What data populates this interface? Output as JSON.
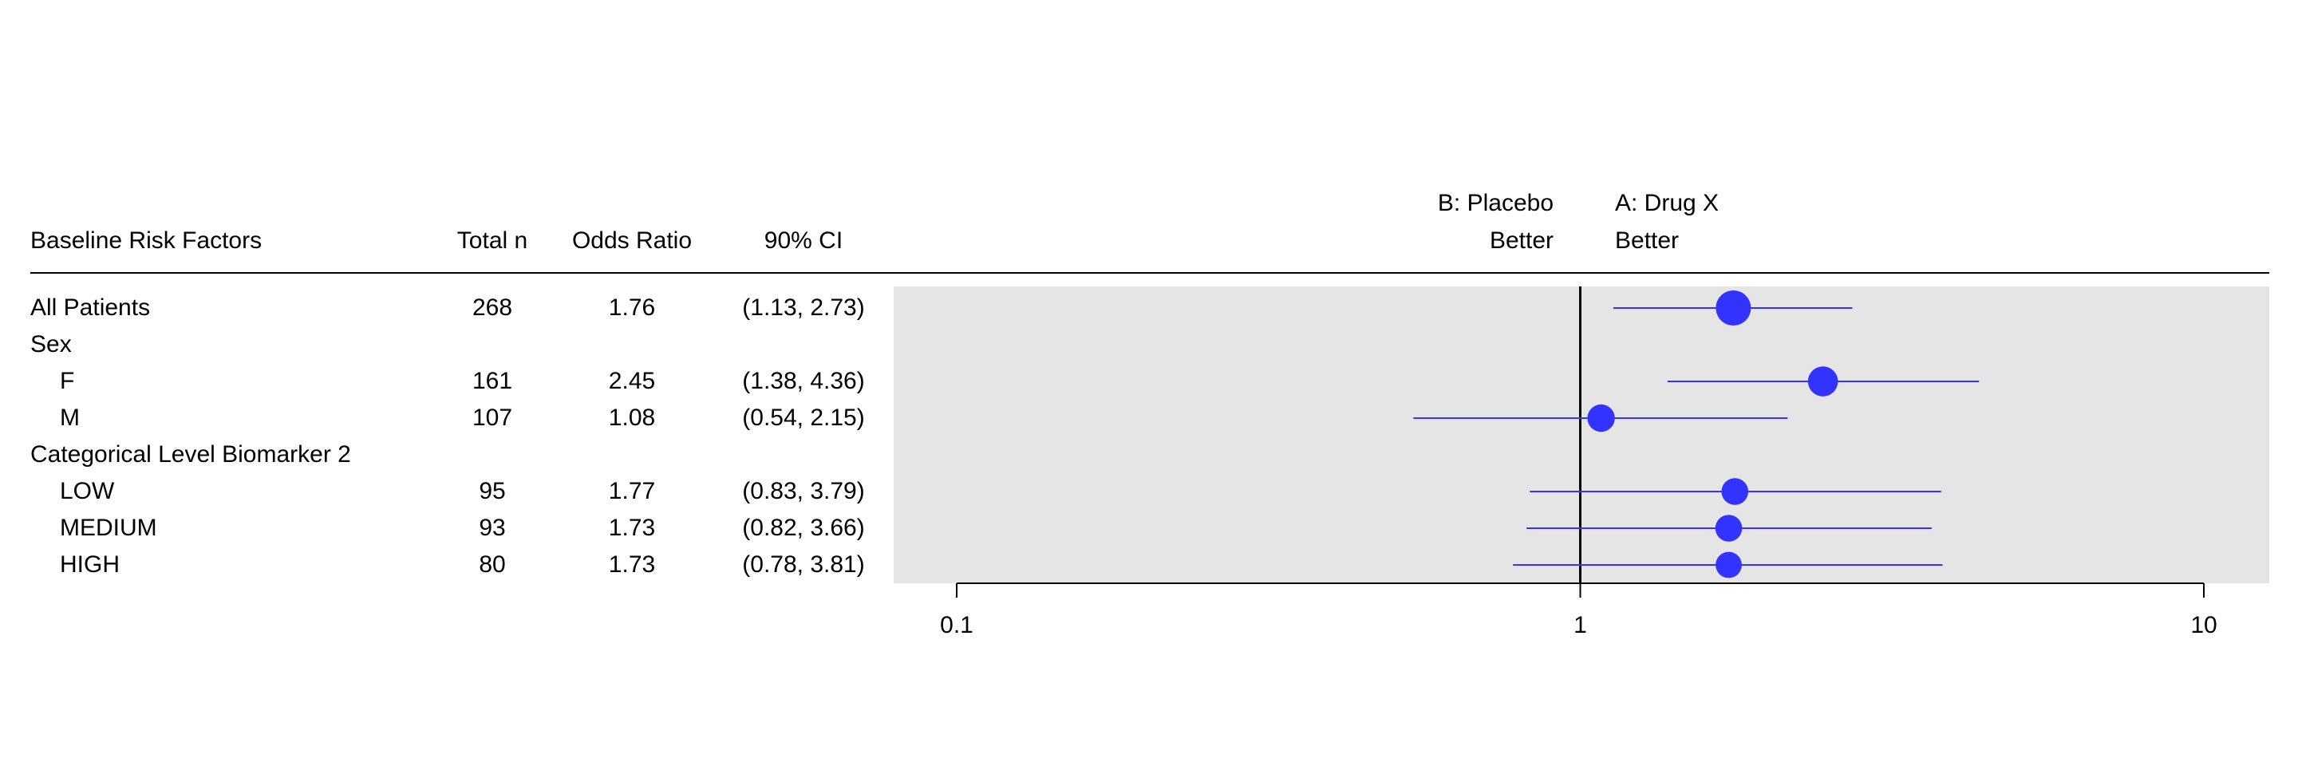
{
  "table": {
    "headers": {
      "factor": "Baseline Risk Factors",
      "n": "Total n",
      "or": "Odds Ratio",
      "ci": "90% CI"
    },
    "rows": [
      {
        "label": "All Patients",
        "indent": false,
        "n": "268",
        "or": "1.76",
        "ci": "(1.13, 2.73)"
      },
      {
        "label": "Sex",
        "indent": false,
        "n": "",
        "or": "",
        "ci": ""
      },
      {
        "label": "F",
        "indent": true,
        "n": "161",
        "or": "2.45",
        "ci": "(1.38, 4.36)"
      },
      {
        "label": "M",
        "indent": true,
        "n": "107",
        "or": "1.08",
        "ci": "(0.54, 2.15)"
      },
      {
        "label": "Categorical Level Biomarker 2",
        "indent": false,
        "n": "",
        "or": "",
        "ci": ""
      },
      {
        "label": "LOW",
        "indent": true,
        "n": "95",
        "or": "1.77",
        "ci": "(0.83, 3.79)"
      },
      {
        "label": "MEDIUM",
        "indent": true,
        "n": "93",
        "or": "1.73",
        "ci": "(0.82, 3.66)"
      },
      {
        "label": "HIGH",
        "indent": true,
        "n": "80",
        "or": "1.73",
        "ci": "(0.78, 3.81)"
      }
    ]
  },
  "annotations": {
    "left_line1": "B: Placebo",
    "left_line2": "Better",
    "right_line1": "A: Drug X",
    "right_line2": "Better"
  },
  "chart_data": {
    "type": "scatter",
    "subtype": "forest",
    "x_scale": "log",
    "xlim": [
      0.1,
      10
    ],
    "reference_line": 1,
    "x_ticks": [
      "0.1",
      "1",
      "10"
    ],
    "points": [
      {
        "row": 0,
        "or": 1.76,
        "lcl": 1.13,
        "ucl": 2.73,
        "n": 268
      },
      {
        "row": 2,
        "or": 2.45,
        "lcl": 1.38,
        "ucl": 4.36,
        "n": 161
      },
      {
        "row": 3,
        "or": 1.08,
        "lcl": 0.54,
        "ucl": 2.15,
        "n": 107
      },
      {
        "row": 5,
        "or": 1.77,
        "lcl": 0.83,
        "ucl": 3.79,
        "n": 95
      },
      {
        "row": 6,
        "or": 1.73,
        "lcl": 0.82,
        "ucl": 3.66,
        "n": 93
      },
      {
        "row": 7,
        "or": 1.73,
        "lcl": 0.78,
        "ucl": 3.81,
        "n": 80
      }
    ],
    "colors": {
      "point": "#3333ff",
      "panel": "#e5e5e5",
      "axis": "#000000"
    }
  }
}
